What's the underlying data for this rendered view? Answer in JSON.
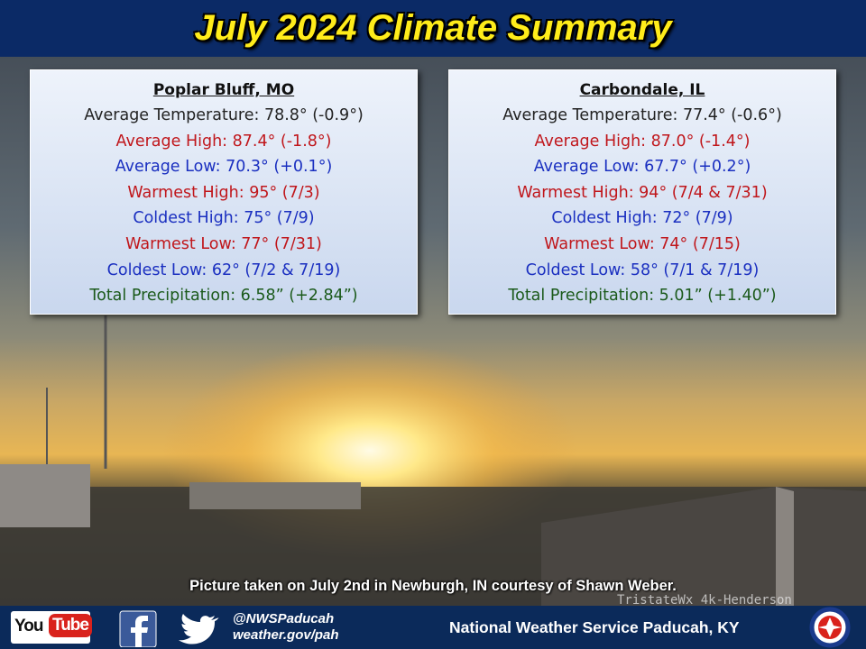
{
  "header": {
    "title": "July 2024 Climate Summary"
  },
  "panels": [
    {
      "title": "Poplar Bluff, MO",
      "rows": [
        {
          "text": "Average Temperature: 78.8° (-0.9°)",
          "color": "#222222"
        },
        {
          "text": "Average High: 87.4° (-1.8°)",
          "color": "#c0161b"
        },
        {
          "text": "Average Low: 70.3° (+0.1°)",
          "color": "#1a2fc0"
        },
        {
          "text": "Warmest High: 95° (7/3)",
          "color": "#c0161b"
        },
        {
          "text": "Coldest High: 75° (7/9)",
          "color": "#1a2fc0"
        },
        {
          "text": "Warmest Low: 77° (7/31)",
          "color": "#c0161b"
        },
        {
          "text": "Coldest Low: 62° (7/2 & 7/19)",
          "color": "#1a2fc0"
        },
        {
          "text": "Total Precipitation: 6.58” (+2.84”)",
          "color": "#1b5a1b"
        }
      ]
    },
    {
      "title": "Carbondale, IL",
      "rows": [
        {
          "text": "Average Temperature: 77.4° (-0.6°)",
          "color": "#222222"
        },
        {
          "text": "Average High: 87.0° (-1.4°)",
          "color": "#c0161b"
        },
        {
          "text": "Average Low: 67.7° (+0.2°)",
          "color": "#1a2fc0"
        },
        {
          "text": "Warmest High: 94° (7/4 & 7/31)",
          "color": "#c0161b"
        },
        {
          "text": "Coldest High: 72° (7/9)",
          "color": "#1a2fc0"
        },
        {
          "text": "Warmest Low: 74° (7/15)",
          "color": "#c0161b"
        },
        {
          "text": "Coldest Low: 58° (7/1 & 7/19)",
          "color": "#1a2fc0"
        },
        {
          "text": "Total Precipitation: 5.01” (+1.40”)",
          "color": "#1b5a1b"
        }
      ]
    }
  ],
  "caption": "Picture taken on July 2nd in Newburgh, IN courtesy of Shawn Weber.",
  "watermark": "TristateWx 4k-Henderson",
  "footer": {
    "youtube": [
      "You",
      "Tube"
    ],
    "handle": "@NWSPaducah",
    "url": "weather.gov/pah",
    "org": "National Weather Service Paducah, KY"
  }
}
